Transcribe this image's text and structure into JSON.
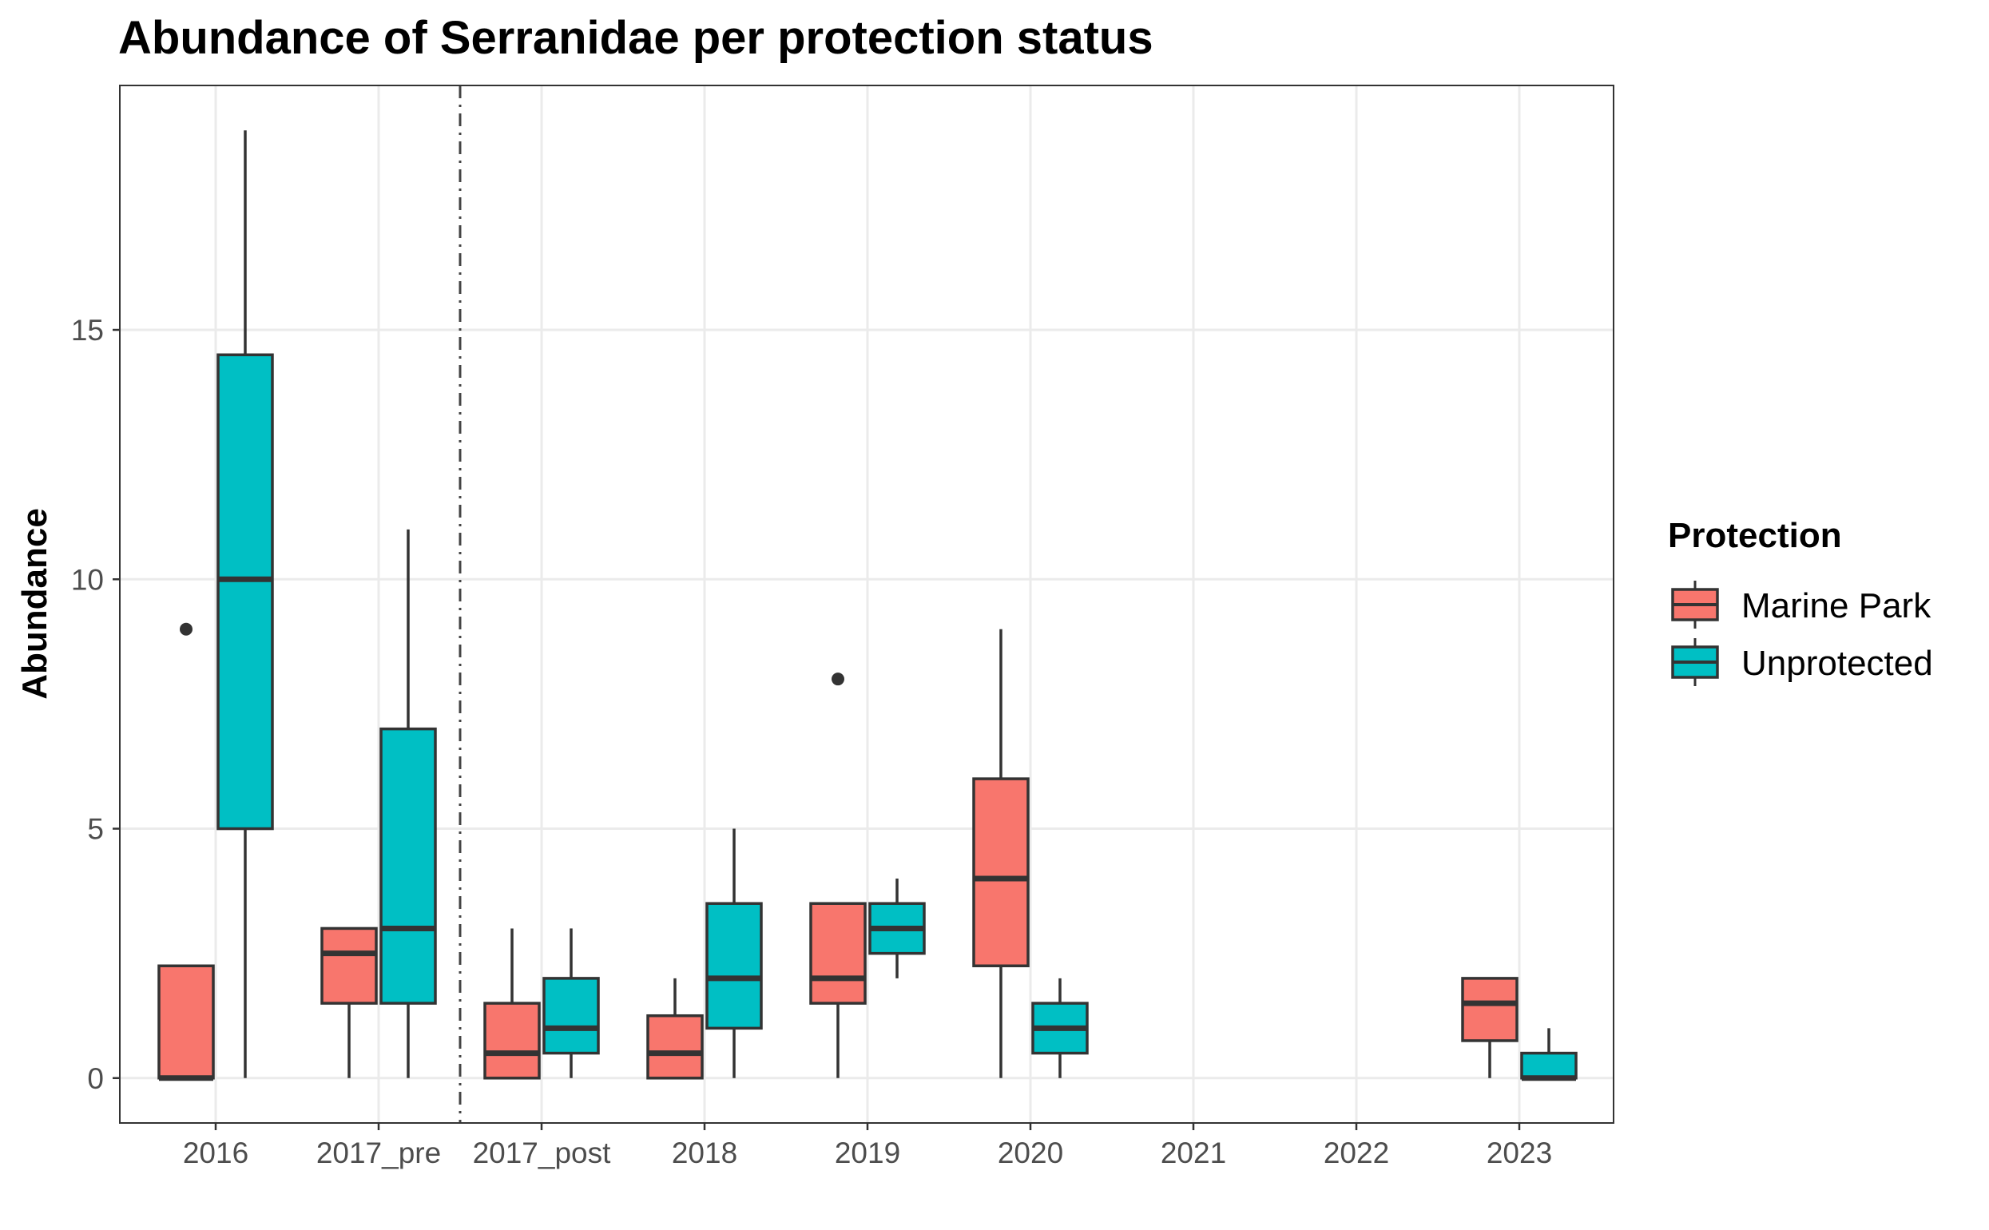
{
  "chart_data": {
    "type": "boxplot",
    "title": "Abundance of Serranidae per protection status",
    "xlabel": "",
    "ylabel": "Abundance",
    "categories": [
      "2016",
      "2017_pre",
      "2017_post",
      "2018",
      "2019",
      "2020",
      "2021",
      "2022",
      "2023"
    ],
    "y_ticks": [
      0,
      5,
      10,
      15
    ],
    "ylim": [
      -0.9,
      19.9
    ],
    "grid": true,
    "reference_line": {
      "between": [
        "2017_pre",
        "2017_post"
      ],
      "style": "dashdot"
    },
    "legend": {
      "title": "Protection",
      "position": "right",
      "entries": [
        {
          "label": "Marine Park",
          "color": "#F8766D"
        },
        {
          "label": "Unprotected",
          "color": "#00BFC4"
        }
      ]
    },
    "series": [
      {
        "name": "Marine Park",
        "color": "#F8766D",
        "boxes": [
          {
            "category": "2016",
            "min": 0,
            "q1": 0,
            "median": 0,
            "q3": 2.25,
            "max": 2.25,
            "outliers": [
              9
            ]
          },
          {
            "category": "2017_pre",
            "min": 0,
            "q1": 1.5,
            "median": 2.5,
            "q3": 3,
            "max": 3,
            "outliers": []
          },
          {
            "category": "2017_post",
            "min": 0,
            "q1": 0,
            "median": 0.5,
            "q3": 1.5,
            "max": 3,
            "outliers": []
          },
          {
            "category": "2018",
            "min": 0,
            "q1": 0,
            "median": 0.5,
            "q3": 1.25,
            "max": 2,
            "outliers": []
          },
          {
            "category": "2019",
            "min": 0,
            "q1": 1.5,
            "median": 2,
            "q3": 3.5,
            "max": 3.5,
            "outliers": [
              8
            ]
          },
          {
            "category": "2020",
            "min": 0,
            "q1": 2.25,
            "median": 4,
            "q3": 6,
            "max": 9,
            "outliers": []
          },
          {
            "category": "2023",
            "min": 0,
            "q1": 0.75,
            "median": 1.5,
            "q3": 2,
            "max": 2,
            "outliers": []
          }
        ]
      },
      {
        "name": "Unprotected",
        "color": "#00BFC4",
        "boxes": [
          {
            "category": "2016",
            "min": 0,
            "q1": 5,
            "median": 10,
            "q3": 14.5,
            "max": 19,
            "outliers": []
          },
          {
            "category": "2017_pre",
            "min": 0,
            "q1": 1.5,
            "median": 3,
            "q3": 7,
            "max": 11,
            "outliers": []
          },
          {
            "category": "2017_post",
            "min": 0,
            "q1": 0.5,
            "median": 1,
            "q3": 2,
            "max": 3,
            "outliers": []
          },
          {
            "category": "2018",
            "min": 0,
            "q1": 1,
            "median": 2,
            "q3": 3.5,
            "max": 5,
            "outliers": []
          },
          {
            "category": "2019",
            "min": 2,
            "q1": 2.5,
            "median": 3,
            "q3": 3.5,
            "max": 4,
            "outliers": []
          },
          {
            "category": "2020",
            "min": 0,
            "q1": 0.5,
            "median": 1,
            "q3": 1.5,
            "max": 2,
            "outliers": []
          },
          {
            "category": "2023",
            "min": 0,
            "q1": 0,
            "median": 0,
            "q3": 0.5,
            "max": 1,
            "outliers": []
          }
        ]
      }
    ]
  }
}
